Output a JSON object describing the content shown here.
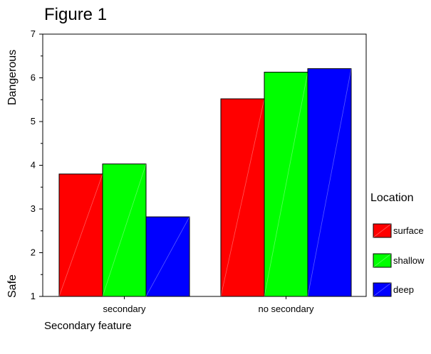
{
  "figure": {
    "title": "Figure 1"
  },
  "chart_data": {
    "type": "bar",
    "categories": [
      "secondary",
      "no secondary"
    ],
    "series": [
      {
        "name": "surface",
        "values": [
          3.8,
          5.52
        ],
        "color": "#ff0000"
      },
      {
        "name": "shallow",
        "values": [
          4.03,
          6.13
        ],
        "color": "#00ff00"
      },
      {
        "name": "deep",
        "values": [
          2.82,
          6.21
        ],
        "color": "#0000ff"
      }
    ],
    "ylim": [
      1,
      7
    ],
    "yticks": [
      1,
      2,
      3,
      4,
      5,
      6,
      7
    ],
    "xlabel": "Secondary feature",
    "ylabel_top": "Dangerous",
    "ylabel_bottom": "Safe",
    "legend": {
      "title": "Location",
      "position": "right"
    },
    "grid": false
  }
}
